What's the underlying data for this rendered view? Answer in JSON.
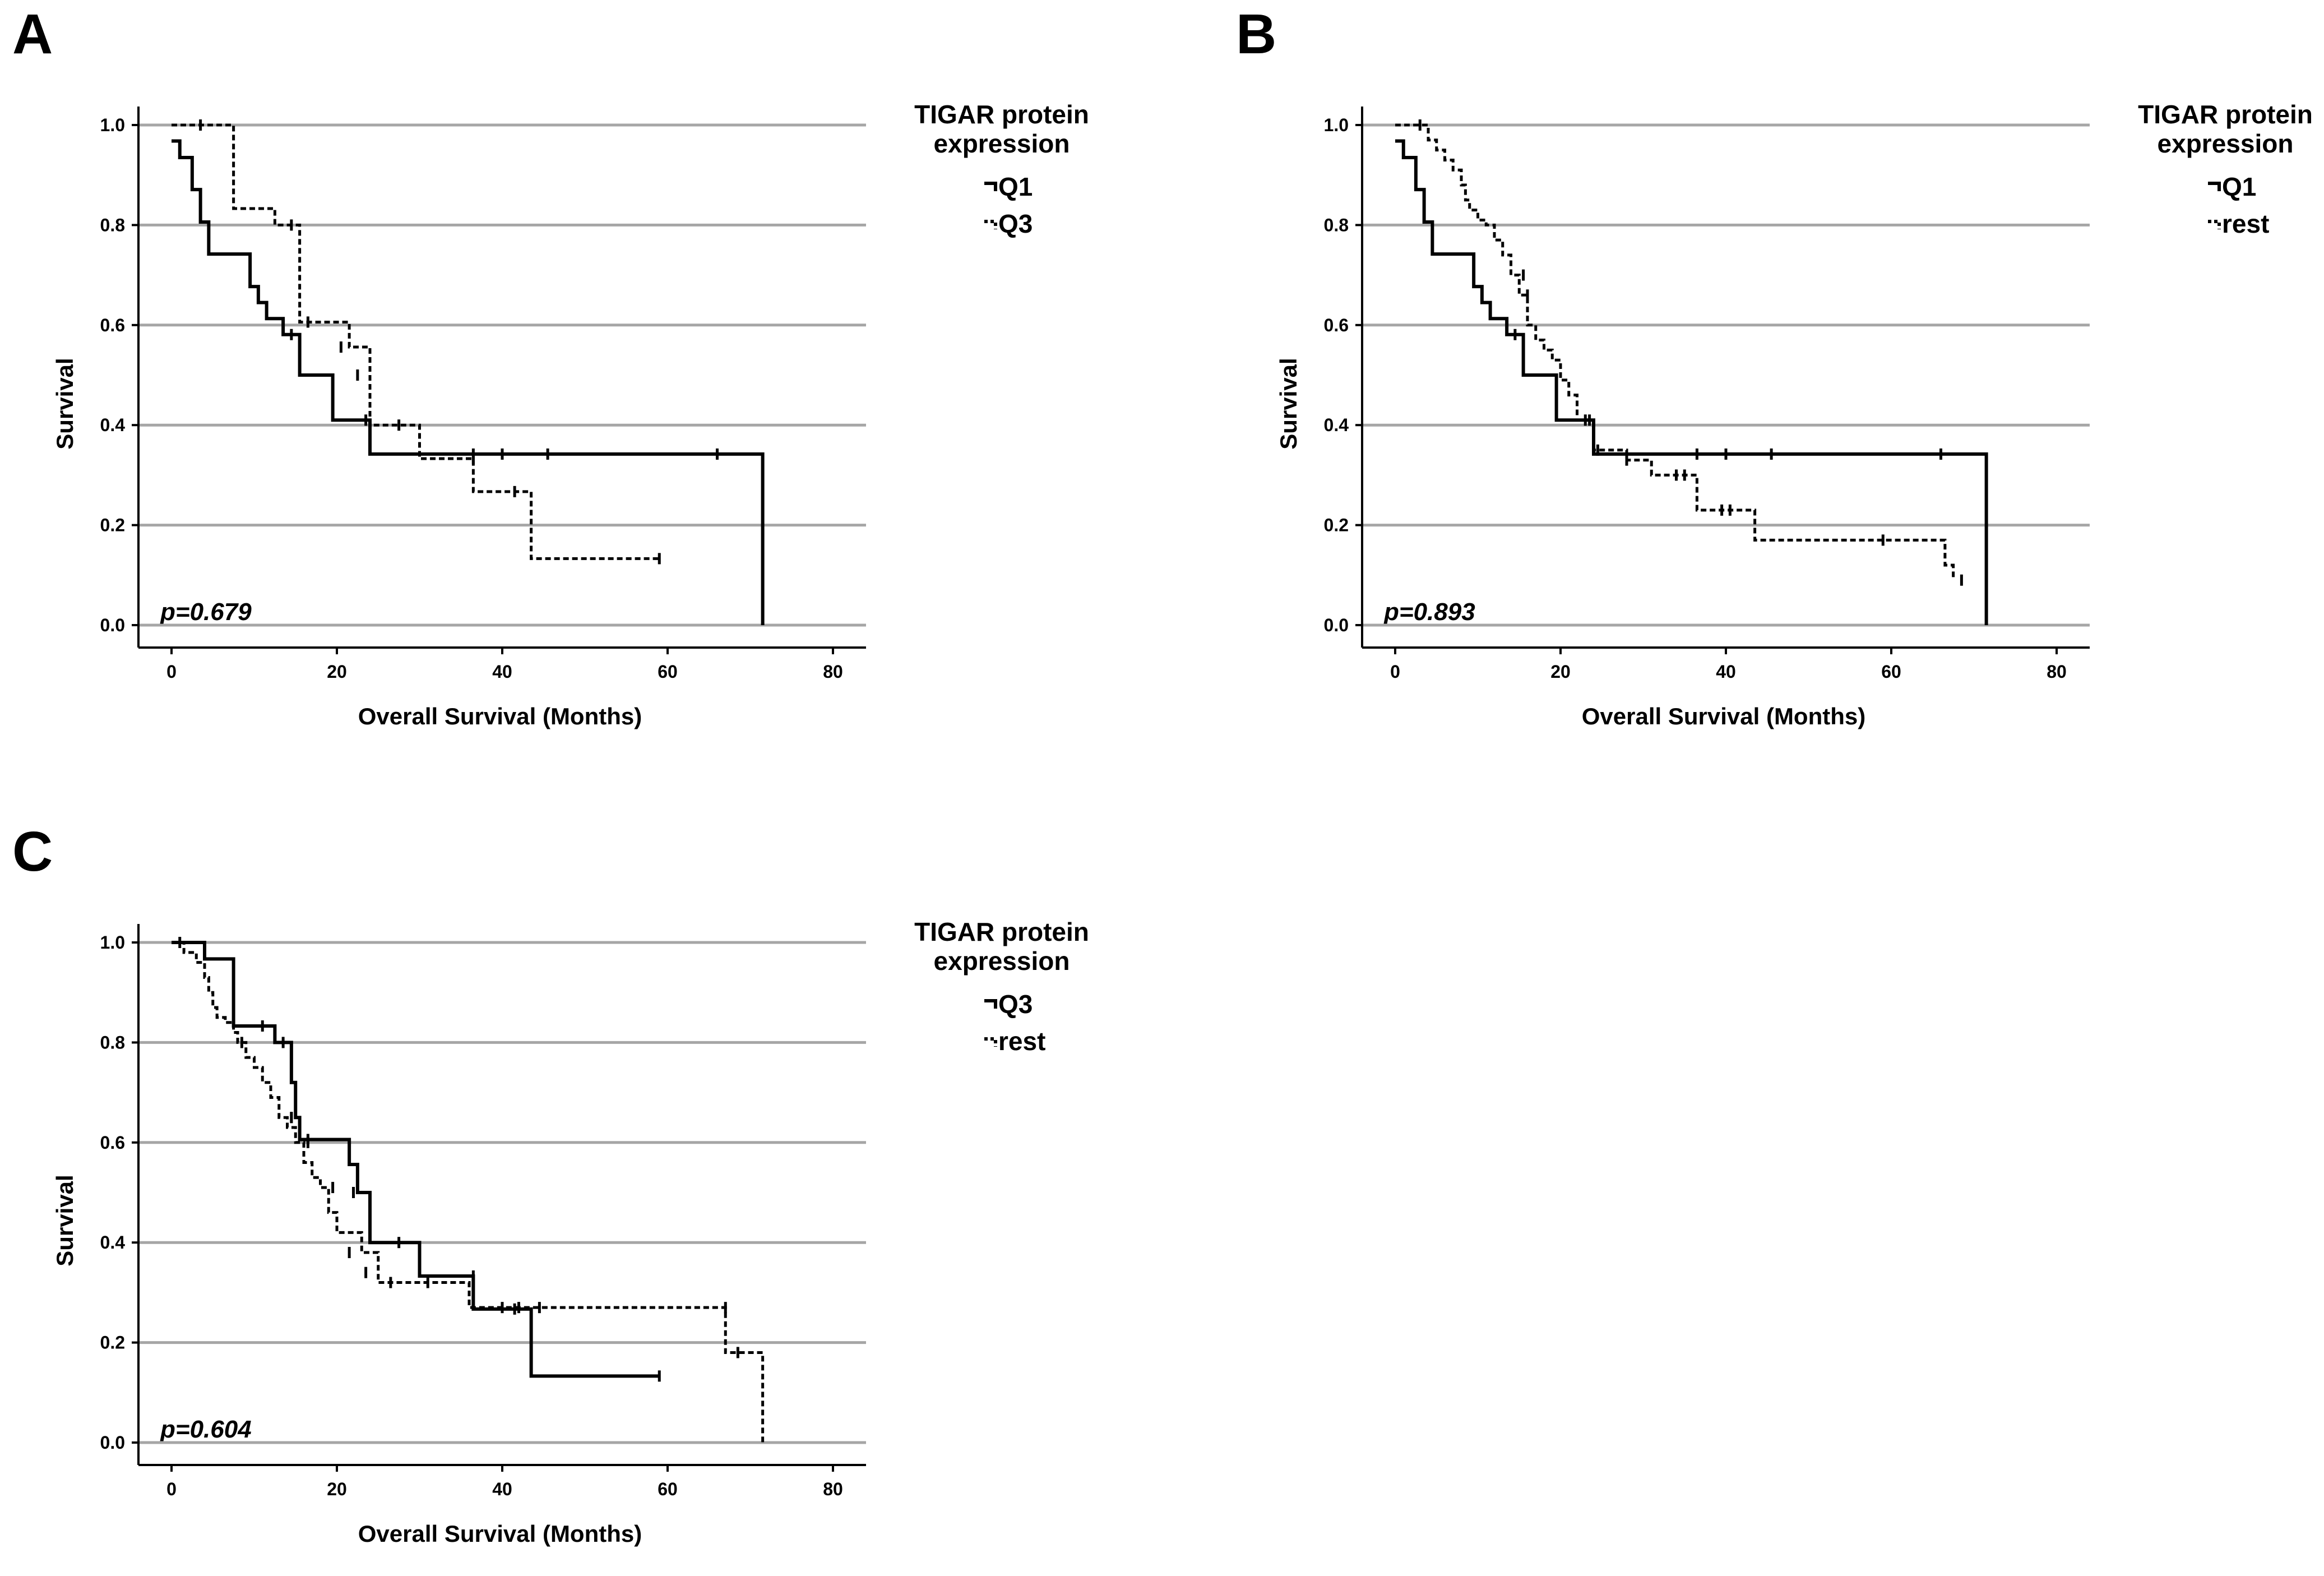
{
  "chart_data": [
    {
      "panel": "A",
      "type": "line",
      "xlabel": "Overall Survival (Months)",
      "ylabel": "Survival",
      "xlim": [
        -4,
        84
      ],
      "ylim": [
        0,
        1.0
      ],
      "xticks": [
        "0",
        "20",
        "40",
        "60",
        "80"
      ],
      "yticks": [
        "0.0",
        "0.2",
        "0.4",
        "0.6",
        "0.8",
        "1.0"
      ],
      "grid": "horizontal",
      "legend_title": "TIGAR protein expression",
      "legend_position": "right",
      "annotation": "p=0.679",
      "series": [
        {
          "name": "Q1",
          "style": "solid",
          "x": [
            0,
            1,
            2.5,
            3.5,
            4.5,
            9.5,
            10.5,
            11.5,
            13.5,
            15.5,
            19.5,
            24,
            71.5,
            71.5
          ],
          "y": [
            0.968,
            0.935,
            0.871,
            0.806,
            0.742,
            0.677,
            0.645,
            0.613,
            0.581,
            0.5,
            0.41,
            0.342,
            0.342,
            0.0
          ],
          "censored": [
            [
              14.5,
              0.581
            ],
            [
              23.5,
              0.41
            ],
            [
              36.5,
              0.342
            ],
            [
              40,
              0.342
            ],
            [
              45.5,
              0.342
            ],
            [
              66,
              0.342
            ]
          ]
        },
        {
          "name": "Q3",
          "style": "dashed",
          "x": [
            0,
            7.5,
            12.5,
            15.5,
            21.5,
            24,
            30,
            36.5,
            43.5,
            59
          ],
          "y": [
            1.0,
            0.833,
            0.8,
            0.606,
            0.556,
            0.4,
            0.333,
            0.267,
            0.133,
            0.133
          ],
          "censored": [
            [
              3.5,
              1.0
            ],
            [
              14.5,
              0.8
            ],
            [
              16.5,
              0.606
            ],
            [
              20.5,
              0.556
            ],
            [
              22.5,
              0.5
            ],
            [
              27.5,
              0.4
            ],
            [
              36.5,
              0.333
            ],
            [
              41.5,
              0.267
            ],
            [
              59,
              0.133
            ]
          ]
        }
      ]
    },
    {
      "panel": "B",
      "type": "line",
      "xlabel": "Overall Survival (Months)",
      "ylabel": "Survival",
      "xlim": [
        -4,
        84
      ],
      "ylim": [
        0,
        1.0
      ],
      "xticks": [
        "0",
        "20",
        "40",
        "60",
        "80"
      ],
      "yticks": [
        "0.0",
        "0.2",
        "0.4",
        "0.6",
        "0.8",
        "1.0"
      ],
      "grid": "horizontal",
      "legend_title": "TIGAR protein expression",
      "legend_position": "right",
      "annotation": "p=0.893",
      "series": [
        {
          "name": "Q1",
          "style": "solid",
          "x": [
            0,
            1,
            2.5,
            3.5,
            4.5,
            9.5,
            10.5,
            11.5,
            13.5,
            15.5,
            19.5,
            24,
            71.5,
            71.5
          ],
          "y": [
            0.968,
            0.935,
            0.871,
            0.806,
            0.742,
            0.677,
            0.645,
            0.613,
            0.581,
            0.5,
            0.41,
            0.342,
            0.342,
            0.0
          ],
          "censored": [
            [
              14.5,
              0.581
            ],
            [
              23.5,
              0.41
            ],
            [
              36.5,
              0.342
            ],
            [
              40,
              0.342
            ],
            [
              45.5,
              0.342
            ],
            [
              66,
              0.342
            ]
          ]
        },
        {
          "name": "rest",
          "style": "dashed",
          "x": [
            0,
            4,
            5,
            6,
            7,
            8,
            8.5,
            9,
            10,
            11,
            12,
            13,
            14,
            15,
            16,
            17,
            18,
            19,
            20,
            21,
            22,
            24,
            28,
            31,
            36.5,
            43.5,
            66.5,
            67.5
          ],
          "y": [
            1.0,
            0.97,
            0.95,
            0.93,
            0.91,
            0.88,
            0.85,
            0.83,
            0.81,
            0.8,
            0.77,
            0.74,
            0.7,
            0.66,
            0.6,
            0.57,
            0.55,
            0.53,
            0.49,
            0.46,
            0.41,
            0.35,
            0.33,
            0.3,
            0.23,
            0.17,
            0.12,
            0.09
          ],
          "censored": [
            [
              3,
              1.0
            ],
            [
              15.5,
              0.7
            ],
            [
              16,
              0.66
            ],
            [
              23,
              0.41
            ],
            [
              24.5,
              0.35
            ],
            [
              28,
              0.33
            ],
            [
              34,
              0.3
            ],
            [
              35,
              0.3
            ],
            [
              39.5,
              0.23
            ],
            [
              40.5,
              0.23
            ],
            [
              59,
              0.17
            ],
            [
              68.5,
              0.09
            ]
          ]
        }
      ]
    },
    {
      "panel": "C",
      "type": "line",
      "xlabel": "Overall Survival (Months)",
      "ylabel": "Survival",
      "xlim": [
        -4,
        84
      ],
      "ylim": [
        0,
        1.0
      ],
      "xticks": [
        "0",
        "20",
        "40",
        "60",
        "80"
      ],
      "yticks": [
        "0.0",
        "0.2",
        "0.4",
        "0.6",
        "0.8",
        "1.0"
      ],
      "grid": "horizontal",
      "legend_title": "TIGAR protein expression",
      "legend_position": "right",
      "annotation": "p=0.604",
      "series": [
        {
          "name": "Q3",
          "style": "solid",
          "x": [
            0,
            4,
            7.5,
            12.5,
            14.5,
            15,
            15.5,
            21.5,
            22.5,
            24,
            30,
            36.5,
            43.5,
            59
          ],
          "y": [
            1.0,
            0.967,
            0.833,
            0.8,
            0.72,
            0.65,
            0.606,
            0.556,
            0.5,
            0.4,
            0.333,
            0.267,
            0.133,
            0.133
          ],
          "censored": [
            [
              11,
              0.833
            ],
            [
              13.5,
              0.8
            ],
            [
              14.5,
              0.65
            ],
            [
              16.5,
              0.606
            ],
            [
              22,
              0.5
            ],
            [
              27.5,
              0.4
            ],
            [
              36.5,
              0.333
            ],
            [
              41.5,
              0.267
            ],
            [
              59,
              0.133
            ]
          ]
        },
        {
          "name": "rest",
          "style": "dashed",
          "x": [
            0,
            1.5,
            3,
            4,
            4.5,
            5,
            5.5,
            6.5,
            7.5,
            8,
            9,
            10,
            11,
            12,
            13,
            14,
            15,
            16,
            17,
            18,
            19,
            20,
            23,
            25,
            32,
            36,
            45,
            67,
            70,
            71.5
          ],
          "y": [
            1.0,
            0.98,
            0.96,
            0.93,
            0.9,
            0.87,
            0.85,
            0.84,
            0.82,
            0.8,
            0.77,
            0.75,
            0.72,
            0.69,
            0.65,
            0.63,
            0.6,
            0.56,
            0.53,
            0.51,
            0.46,
            0.42,
            0.38,
            0.32,
            0.32,
            0.27,
            0.27,
            0.18,
            0.18,
            0.0
          ],
          "censored": [
            [
              1,
              1.0
            ],
            [
              8.5,
              0.8
            ],
            [
              14.5,
              0.65
            ],
            [
              16.5,
              0.6
            ],
            [
              19.5,
              0.51
            ],
            [
              21.5,
              0.38
            ],
            [
              23.5,
              0.34
            ],
            [
              26.5,
              0.32
            ],
            [
              31,
              0.32
            ],
            [
              36.5,
              0.32
            ],
            [
              40,
              0.27
            ],
            [
              42,
              0.27
            ],
            [
              44.5,
              0.27
            ],
            [
              67,
              0.27
            ],
            [
              68.5,
              0.18
            ]
          ]
        }
      ]
    }
  ]
}
